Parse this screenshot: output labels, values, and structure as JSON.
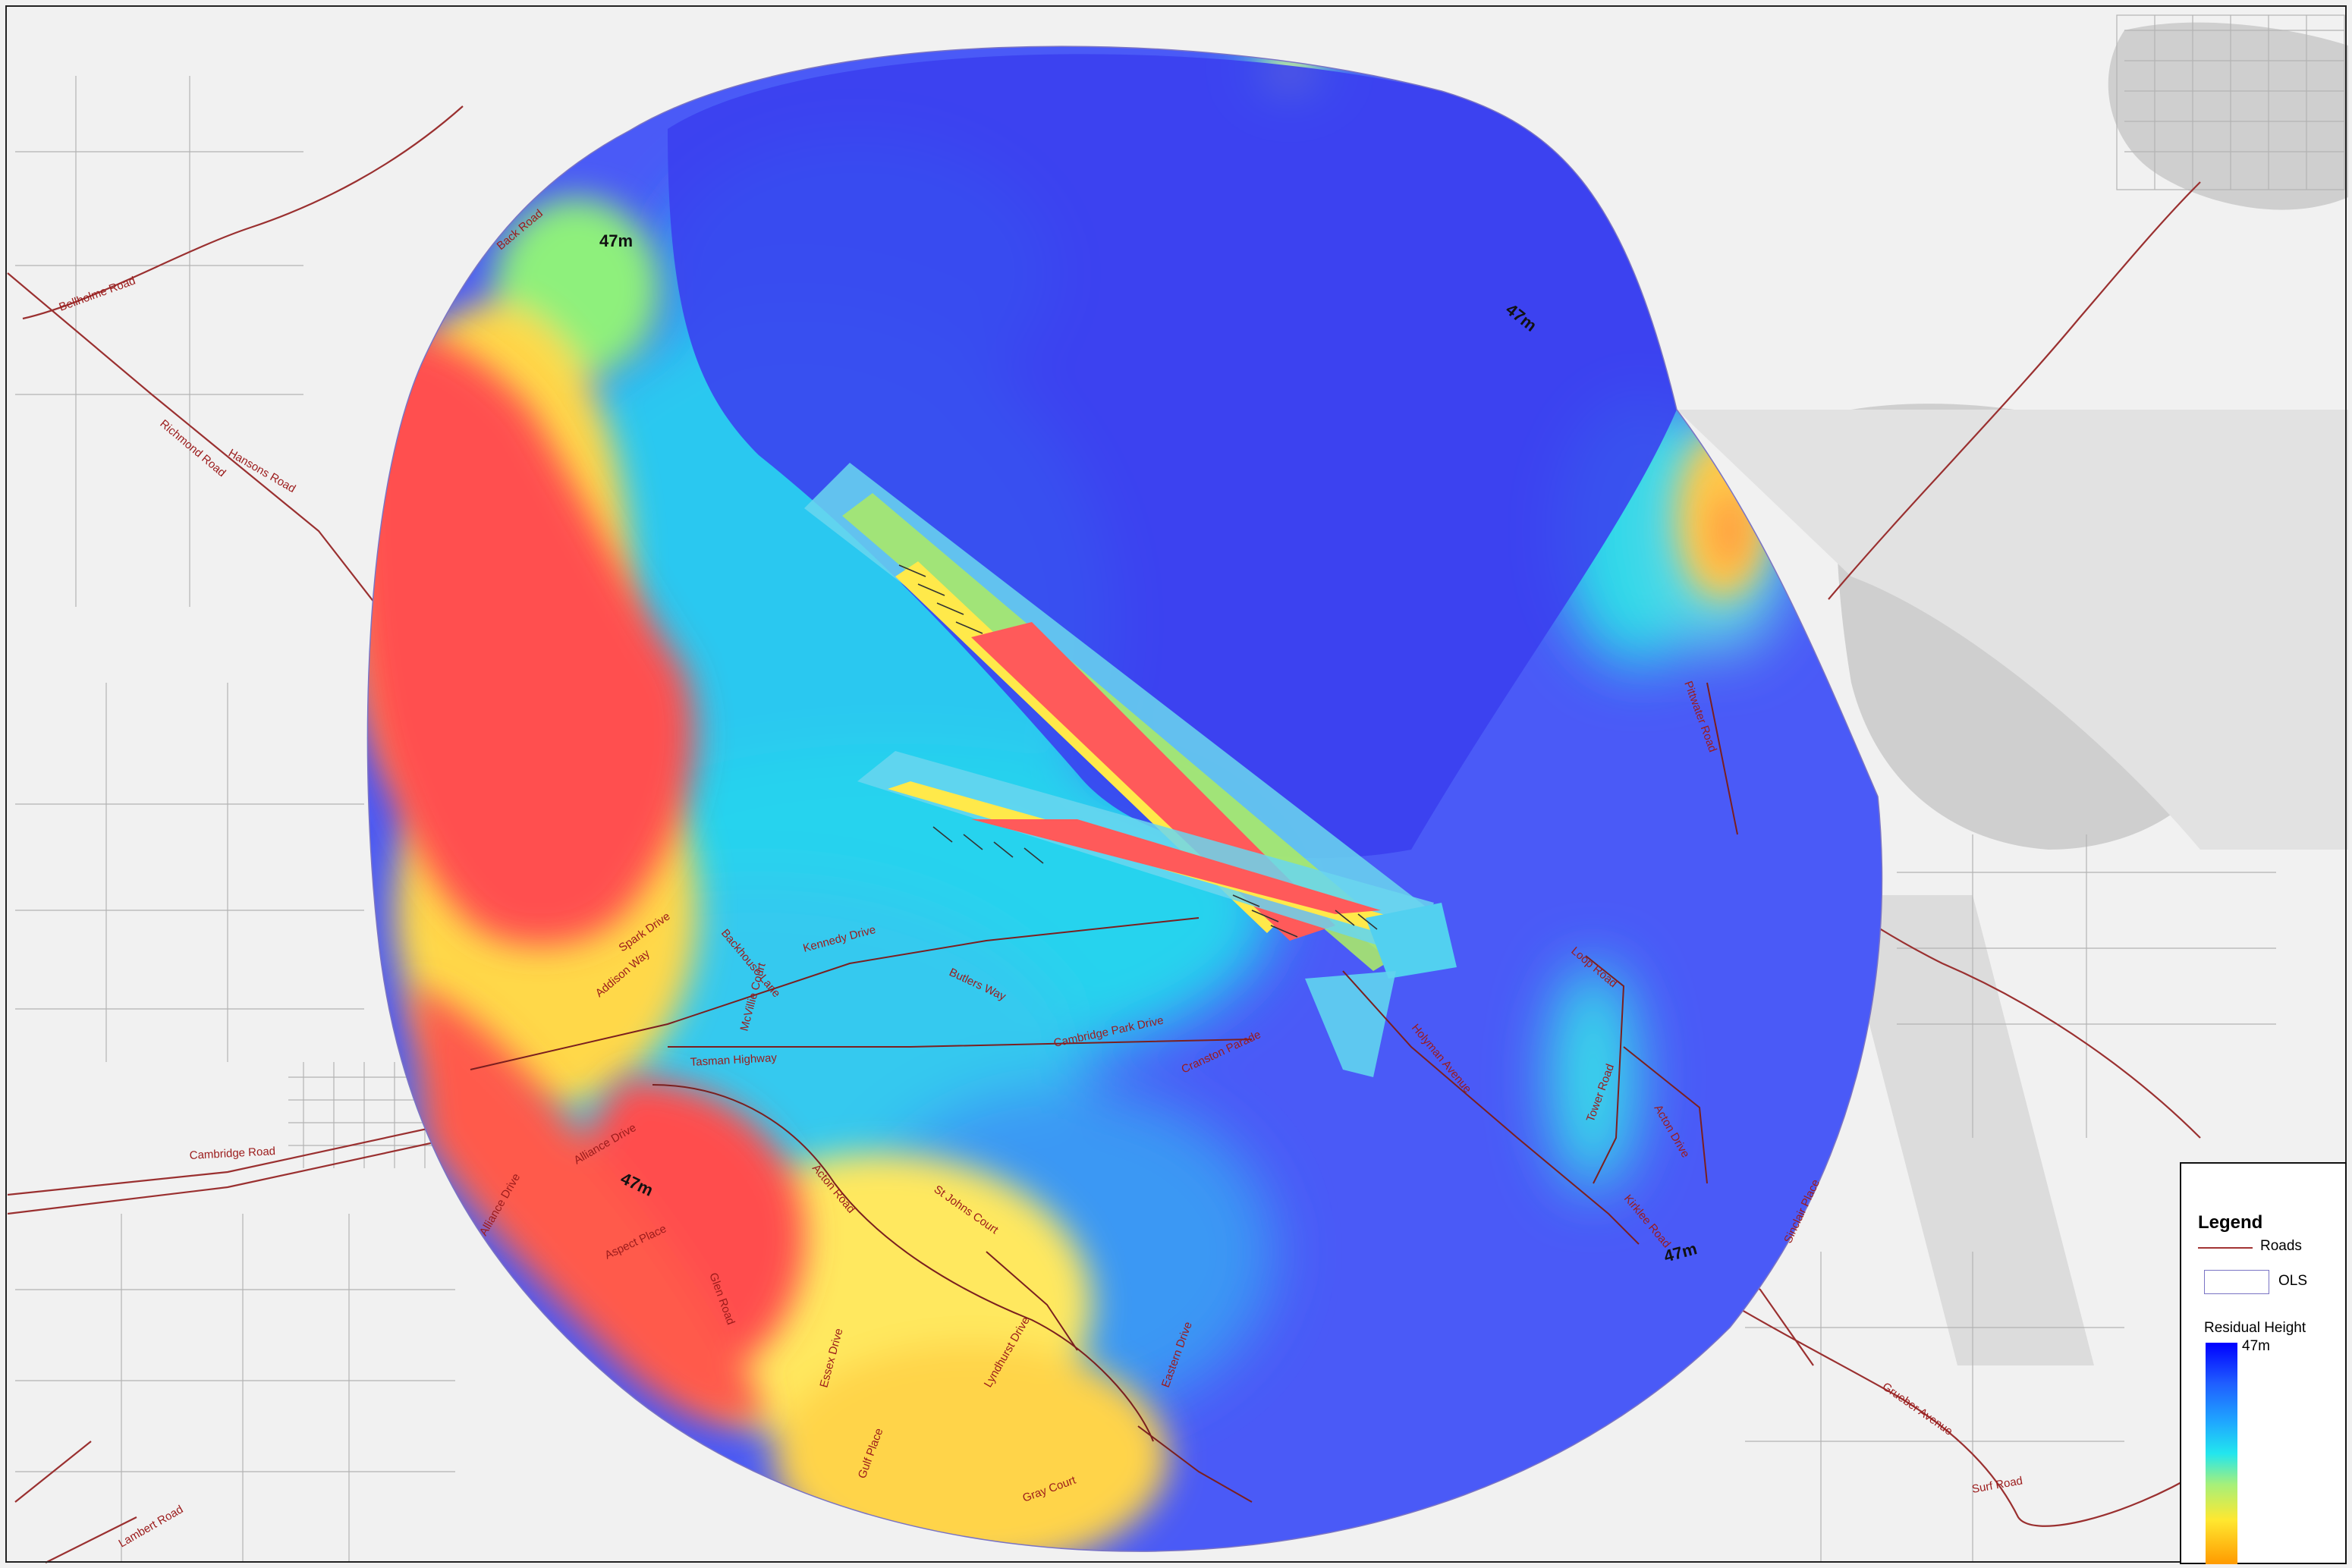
{
  "map": {
    "contour_labels": [
      "47m",
      "47m",
      "47m",
      "47m"
    ],
    "road_labels": [
      "Bellholme Road",
      "Richmond Road",
      "Hansons Road",
      "Back Road",
      "Spark Drive",
      "Backhouse Lane",
      "Kennedy Drive",
      "Addison Way",
      "McVillie Court",
      "Butlers Way",
      "Cambridge Park Drive",
      "Tasman Highway",
      "Cranston Parade",
      "Holyman Avenue",
      "Loop Road",
      "Tower Road",
      "Acton Drive",
      "Kirklee Road",
      "Pittwater Road",
      "Alliance Drive",
      "Acton Road",
      "St Johns Court",
      "Aspect Place",
      "Glen Road",
      "Essex Drive",
      "Gulf Place",
      "Lyndhurst Drive",
      "Gray Court",
      "Eastern Drive",
      "Sinclair Place",
      "Grueber Avenue",
      "Surf Road",
      "Cambridge Road",
      "Lambert Road",
      "Alliance Drive"
    ]
  },
  "legend": {
    "title": "Legend",
    "roads_label": "Roads",
    "ols_label": "OLS",
    "residual_height_label": "Residual Height",
    "ramp_top_label": "47m",
    "colors": {
      "roads": "#a33434",
      "ols_outline": "#7a74c4",
      "high": "#0000ff",
      "low": "#ff9a00"
    }
  }
}
